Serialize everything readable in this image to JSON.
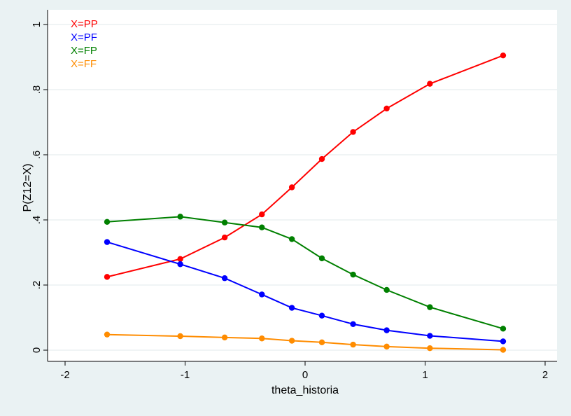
{
  "chart_data": {
    "type": "line",
    "title": "",
    "xlabel": "theta_historia",
    "ylabel": "P(Z12=X)",
    "xlim": [
      -2,
      2
    ],
    "ylim": [
      0,
      1
    ],
    "xticks": [
      -2,
      -1,
      0,
      1,
      2
    ],
    "xtick_labels": [
      "-2",
      "-1",
      "0",
      "1",
      "2"
    ],
    "yticks": [
      0,
      0.2,
      0.4,
      0.6,
      0.8,
      1
    ],
    "ytick_labels": [
      "0",
      ".2",
      ".4",
      ".6",
      ".8",
      "1"
    ],
    "grid": true,
    "legend_position": "top-left",
    "x": [
      -1.65,
      -1.04,
      -0.67,
      -0.36,
      -0.11,
      0.14,
      0.4,
      0.68,
      1.04,
      1.65
    ],
    "series": [
      {
        "name": "X=PP",
        "color": "#ff0000",
        "values": [
          0.225,
          0.28,
          0.346,
          0.417,
          0.5,
          0.587,
          0.67,
          0.742,
          0.818,
          0.905
        ]
      },
      {
        "name": "X=PF",
        "color": "#0000ff",
        "values": [
          0.332,
          0.264,
          0.221,
          0.171,
          0.13,
          0.106,
          0.08,
          0.061,
          0.044,
          0.027
        ]
      },
      {
        "name": "X=FP",
        "color": "#008000",
        "values": [
          0.394,
          0.41,
          0.392,
          0.377,
          0.341,
          0.282,
          0.232,
          0.185,
          0.132,
          0.066
        ]
      },
      {
        "name": "X=FF",
        "color": "#ff8c00",
        "values": [
          0.048,
          0.043,
          0.039,
          0.036,
          0.029,
          0.024,
          0.017,
          0.011,
          0.006,
          0.001
        ]
      }
    ]
  }
}
